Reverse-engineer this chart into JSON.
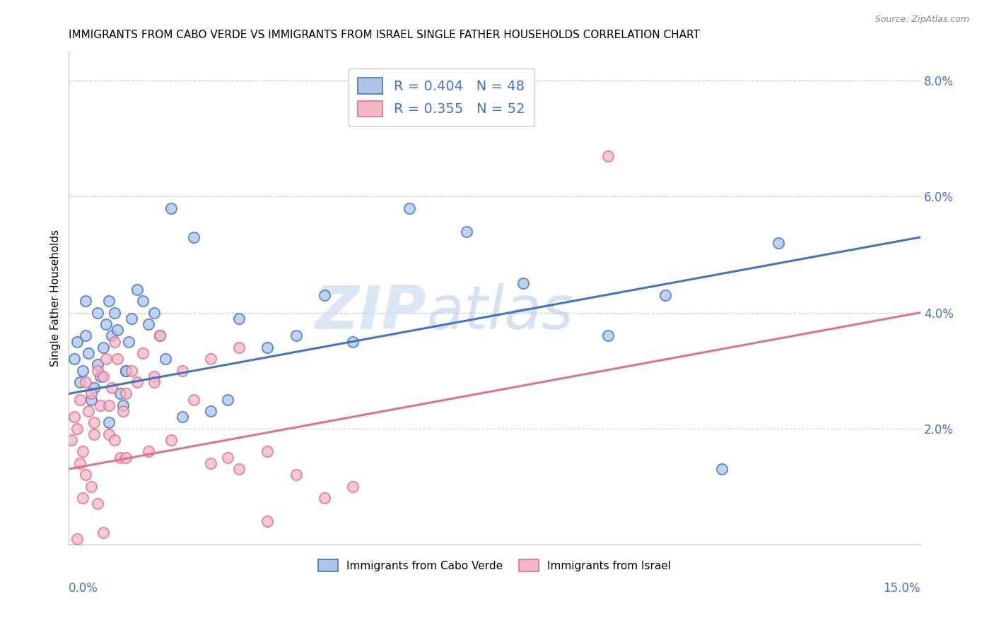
{
  "title": "IMMIGRANTS FROM CABO VERDE VS IMMIGRANTS FROM ISRAEL SINGLE FATHER HOUSEHOLDS CORRELATION CHART",
  "source": "Source: ZipAtlas.com",
  "ylabel": "Single Father Households",
  "legend1_r": "0.404",
  "legend1_n": "48",
  "legend2_r": "0.355",
  "legend2_n": "52",
  "color_blue": "#adc6e8",
  "color_pink": "#f5b8c8",
  "line_blue": "#4472c4",
  "line_pink": "#e07090",
  "text_color": "#4472c4",
  "watermark_zip": "#c8ddf0",
  "watermark_atlas": "#a8c8e8",
  "cabo_verde_x": [
    0.1,
    0.15,
    0.2,
    0.25,
    0.3,
    0.35,
    0.4,
    0.45,
    0.5,
    0.55,
    0.6,
    0.65,
    0.7,
    0.75,
    0.8,
    0.85,
    0.9,
    0.95,
    1.0,
    1.05,
    1.1,
    1.2,
    1.3,
    1.4,
    1.5,
    1.6,
    1.7,
    1.8,
    2.0,
    2.2,
    2.5,
    2.8,
    3.0,
    3.5,
    4.0,
    4.5,
    5.0,
    6.0,
    7.0,
    8.0,
    9.5,
    10.5,
    11.5,
    12.5,
    0.3,
    0.5,
    0.7,
    1.0
  ],
  "cabo_verde_y": [
    3.2,
    3.5,
    2.8,
    3.0,
    3.6,
    3.3,
    2.5,
    2.7,
    3.1,
    2.9,
    3.4,
    3.8,
    4.2,
    3.6,
    4.0,
    3.7,
    2.6,
    2.4,
    3.0,
    3.5,
    3.9,
    4.4,
    4.2,
    3.8,
    4.0,
    3.6,
    3.2,
    5.8,
    2.2,
    5.3,
    2.3,
    2.5,
    3.9,
    3.4,
    3.6,
    4.3,
    3.5,
    5.8,
    5.4,
    4.5,
    3.6,
    4.3,
    1.3,
    5.2,
    4.2,
    4.0,
    2.1,
    3.0
  ],
  "israel_x": [
    0.05,
    0.1,
    0.15,
    0.2,
    0.25,
    0.3,
    0.35,
    0.4,
    0.45,
    0.5,
    0.55,
    0.6,
    0.65,
    0.7,
    0.75,
    0.8,
    0.85,
    0.9,
    0.95,
    1.0,
    1.1,
    1.2,
    1.3,
    1.4,
    1.5,
    1.6,
    1.8,
    2.0,
    2.2,
    2.5,
    2.8,
    3.0,
    3.5,
    4.0,
    4.5,
    5.0,
    0.2,
    0.3,
    0.4,
    0.5,
    0.6,
    0.8,
    1.0,
    1.5,
    2.5,
    3.0,
    0.15,
    0.25,
    0.45,
    0.7,
    3.5,
    9.5
  ],
  "israel_y": [
    1.8,
    2.2,
    2.0,
    2.5,
    1.6,
    2.8,
    2.3,
    2.6,
    2.1,
    3.0,
    2.4,
    2.9,
    3.2,
    1.9,
    2.7,
    3.5,
    3.2,
    1.5,
    2.3,
    2.6,
    3.0,
    2.8,
    3.3,
    1.6,
    2.9,
    3.6,
    1.8,
    3.0,
    2.5,
    1.4,
    1.5,
    1.3,
    1.6,
    1.2,
    0.8,
    1.0,
    1.4,
    1.2,
    1.0,
    0.7,
    0.2,
    1.8,
    1.5,
    2.8,
    3.2,
    3.4,
    0.1,
    0.8,
    1.9,
    2.4,
    0.4,
    6.7
  ],
  "blue_intercept": 2.6,
  "blue_slope": 0.18,
  "pink_intercept": 1.3,
  "pink_slope": 0.18
}
